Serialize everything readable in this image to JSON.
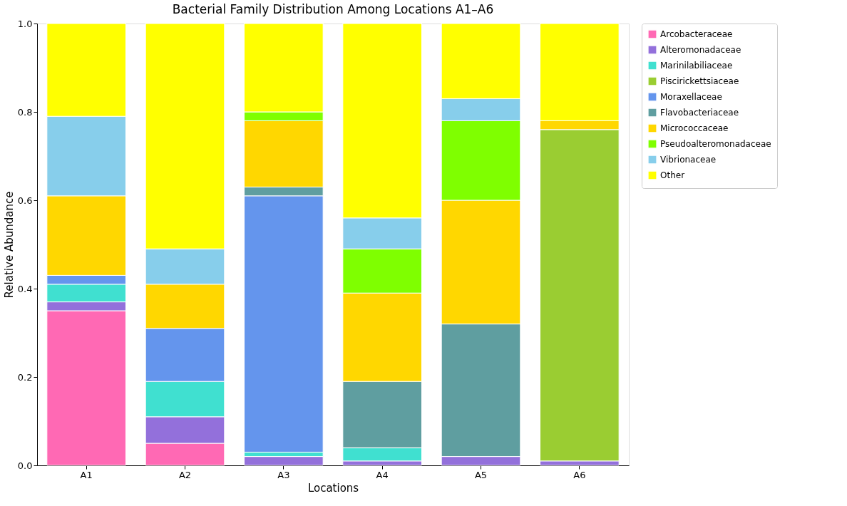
{
  "chart_data": {
    "type": "bar",
    "title": "Bacterial Family Distribution Among Locations A1–A6",
    "xlabel": "Locations",
    "ylabel": "Relative Abundance",
    "categories": [
      "A1",
      "A2",
      "A3",
      "A4",
      "A5",
      "A6"
    ],
    "stacked": true,
    "series": [
      {
        "name": "Arcobacteraceae",
        "color": "#ff69b4",
        "values": [
          0.35,
          0.05,
          null,
          null,
          null,
          null
        ]
      },
      {
        "name": "Alteromonadaceae",
        "color": "#9370db",
        "values": [
          0.02,
          0.06,
          0.02,
          0.01,
          0.02,
          0.01
        ]
      },
      {
        "name": "Marinilabiliaceae",
        "color": "#40e0d0",
        "values": [
          0.04,
          0.08,
          0.01,
          0.03,
          null,
          null
        ]
      },
      {
        "name": "Piscirickettsiaceae",
        "color": "#9acd32",
        "values": [
          null,
          null,
          null,
          null,
          null,
          0.75
        ]
      },
      {
        "name": "Moraxellaceae",
        "color": "#6495ed",
        "values": [
          0.02,
          0.12,
          0.58,
          null,
          null,
          null
        ]
      },
      {
        "name": "Flavobacteriaceae",
        "color": "#5f9ea0",
        "values": [
          null,
          null,
          0.02,
          0.15,
          0.3,
          null
        ]
      },
      {
        "name": "Micrococcaceae",
        "color": "#ffd700",
        "values": [
          0.18,
          0.1,
          0.15,
          0.2,
          0.28,
          0.02
        ]
      },
      {
        "name": "Pseudoalteromonadaceae",
        "color": "#7fff00",
        "values": [
          null,
          null,
          0.02,
          0.1,
          0.18,
          null
        ]
      },
      {
        "name": "Vibrionaceae",
        "color": "#87ceeb",
        "values": [
          0.18,
          0.08,
          null,
          0.07,
          0.05,
          null
        ]
      },
      {
        "name": "Other",
        "color": "#ffff00",
        "values": [
          0.21,
          0.51,
          0.2,
          0.44,
          0.17,
          0.22
        ]
      }
    ],
    "ylim": [
      0,
      1
    ],
    "yticks": [
      {
        "value": 0,
        "label": "0.0"
      },
      {
        "value": 0.2,
        "label": "0.2"
      },
      {
        "value": 0.4,
        "label": "0.4"
      },
      {
        "value": 0.6,
        "label": "0.6"
      },
      {
        "value": 0.8,
        "label": "0.8"
      },
      {
        "value": 1,
        "label": "1.0"
      }
    ],
    "legend": "top right",
    "grid": false
  }
}
